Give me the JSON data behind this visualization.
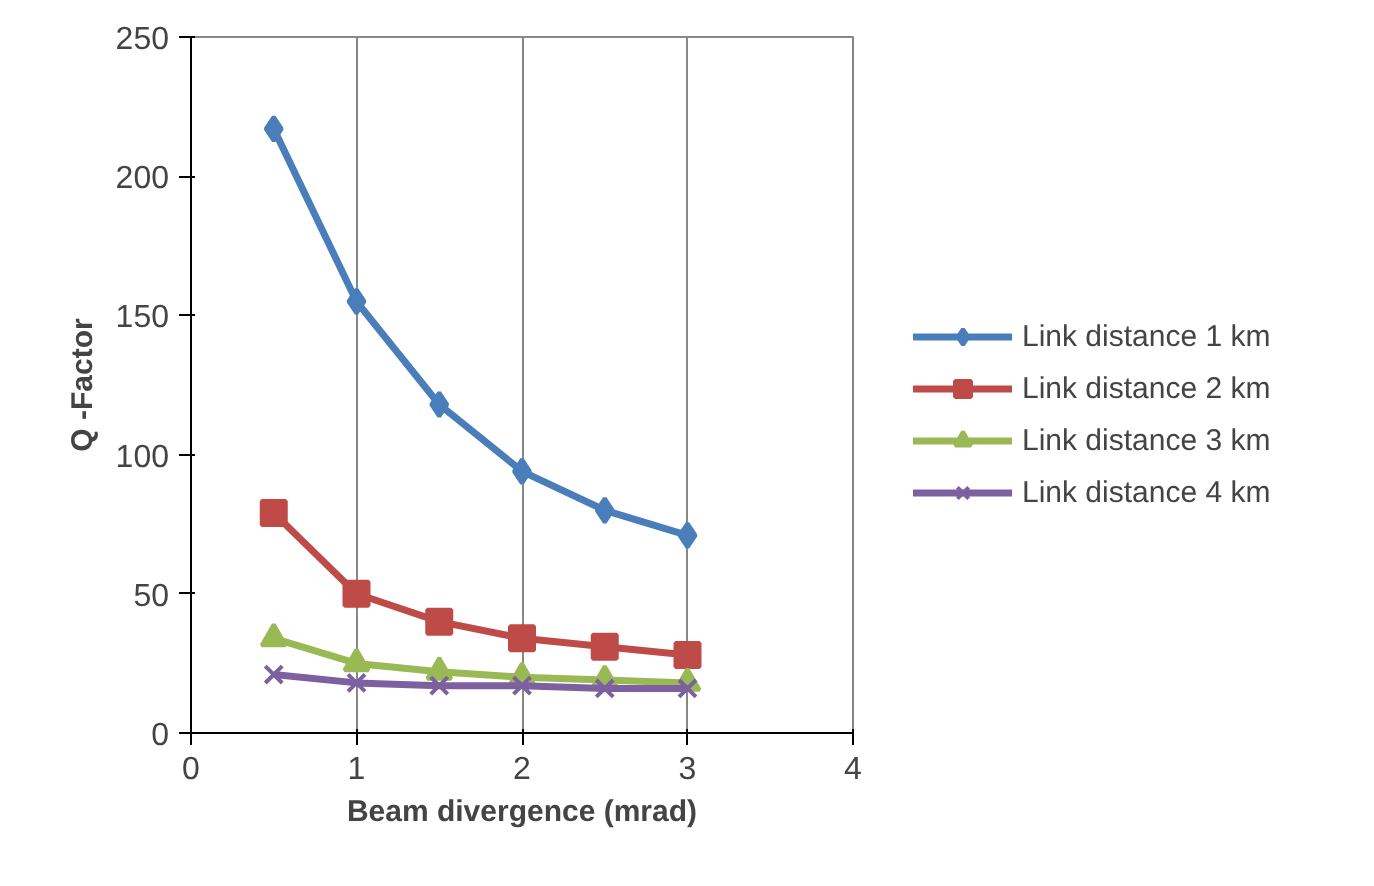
{
  "chart_data": {
    "type": "line",
    "xlabel": "Beam divergence (mrad)",
    "ylabel": "Q -Factor",
    "x": [
      0.5,
      1,
      1.5,
      2,
      2.5,
      3
    ],
    "series": [
      {
        "name": "Link distance 1 km",
        "color": "#4a7ebb",
        "marker": "diamond",
        "values": [
          217,
          155,
          118,
          94,
          80,
          71
        ]
      },
      {
        "name": "Link distance 2 km",
        "color": "#be4b48",
        "marker": "square",
        "values": [
          79,
          50,
          40,
          34,
          31,
          28
        ]
      },
      {
        "name": "Link distance 3 km",
        "color": "#98b954",
        "marker": "triangle",
        "values": [
          34,
          25,
          22,
          20,
          19,
          18
        ]
      },
      {
        "name": "Link distance 4 km",
        "color": "#7d60a0",
        "marker": "cross",
        "values": [
          21,
          18,
          17,
          17,
          16,
          16
        ]
      }
    ],
    "xlim": [
      0,
      4
    ],
    "xticks": [
      0,
      1,
      2,
      3,
      4
    ],
    "ylim": [
      0,
      250
    ],
    "yticks": [
      0,
      50,
      100,
      150,
      200,
      250
    ],
    "grid": "x",
    "legend": "right"
  }
}
